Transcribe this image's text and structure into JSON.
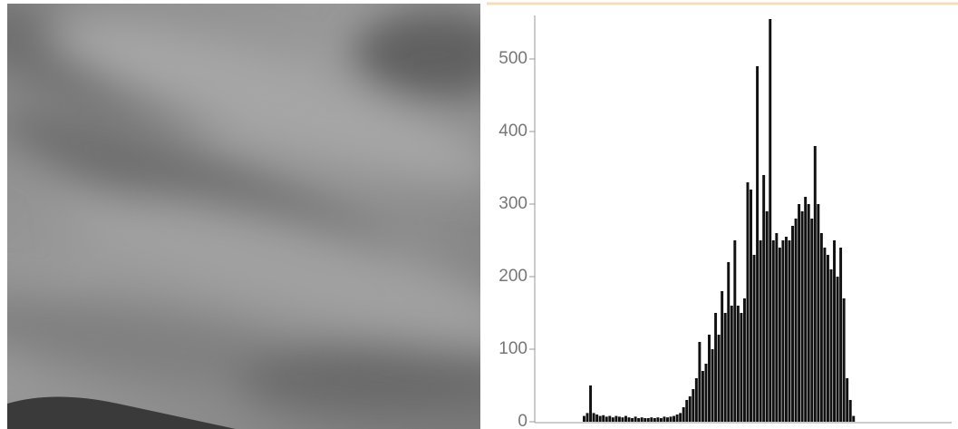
{
  "chart_data": {
    "type": "histogram",
    "bins": [
      26,
      28,
      30,
      32,
      34,
      36,
      38,
      40,
      42,
      44,
      46,
      48,
      50,
      52,
      54,
      56,
      58,
      60,
      62,
      64,
      66,
      68,
      70,
      72,
      74,
      76,
      78,
      80,
      82,
      84,
      86,
      88,
      90,
      92,
      94,
      96,
      98,
      100,
      102,
      104,
      106,
      108,
      110,
      112,
      114,
      116,
      118,
      120,
      122,
      124,
      126,
      128,
      130,
      132,
      134,
      136,
      138,
      140,
      142,
      144,
      146,
      148,
      150,
      152,
      154,
      156,
      158,
      160,
      162,
      164,
      166,
      168,
      170,
      172,
      174,
      176,
      178,
      180,
      182,
      184,
      186,
      188,
      190,
      192,
      194,
      196
    ],
    "values": [
      8,
      12,
      50,
      12,
      10,
      8,
      9,
      7,
      8,
      6,
      8,
      7,
      6,
      8,
      6,
      5,
      7,
      5,
      6,
      5,
      5,
      6,
      5,
      6,
      5,
      7,
      6,
      7,
      8,
      10,
      12,
      20,
      30,
      35,
      45,
      60,
      110,
      70,
      80,
      120,
      100,
      150,
      120,
      180,
      150,
      220,
      160,
      250,
      160,
      150,
      170,
      330,
      320,
      230,
      490,
      250,
      340,
      290,
      555,
      250,
      260,
      240,
      250,
      255,
      250,
      270,
      280,
      300,
      290,
      310,
      300,
      280,
      380,
      300,
      260,
      240,
      230,
      210,
      250,
      200,
      240,
      170,
      60,
      30,
      8
    ],
    "color": "#111111",
    "xlim": [
      0,
      256
    ],
    "ylim": [
      0,
      560
    ],
    "yticks": [
      0,
      100,
      200,
      300,
      400,
      500
    ]
  }
}
